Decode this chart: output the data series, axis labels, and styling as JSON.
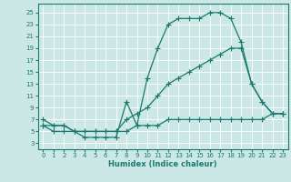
{
  "xlabel": "Humidex (Indice chaleur)",
  "bg_color": "#cce8e6",
  "grid_color": "#b0d4d2",
  "line_color": "#1a7a6e",
  "xlim": [
    -0.5,
    23.5
  ],
  "ylim": [
    2.0,
    26.5
  ],
  "xticks": [
    0,
    1,
    2,
    3,
    4,
    5,
    6,
    7,
    8,
    9,
    10,
    11,
    12,
    13,
    14,
    15,
    16,
    17,
    18,
    19,
    20,
    21,
    22,
    23
  ],
  "yticks": [
    3,
    5,
    7,
    9,
    11,
    13,
    15,
    17,
    19,
    21,
    23,
    25
  ],
  "line1_x": [
    0,
    1,
    2,
    3,
    4,
    5,
    6,
    7,
    8,
    9,
    10,
    11,
    12,
    13,
    14,
    15,
    16,
    17,
    18,
    19,
    20,
    21,
    22,
    23
  ],
  "line1_y": [
    7,
    6,
    6,
    5,
    4,
    4,
    4,
    4,
    10,
    6,
    14,
    19,
    23,
    24,
    24,
    24,
    25,
    25,
    24,
    20,
    13,
    10,
    8,
    8
  ],
  "line2_x": [
    0,
    1,
    2,
    3,
    4,
    5,
    6,
    7,
    8,
    9,
    10,
    11,
    12,
    13,
    14,
    15,
    16,
    17,
    18,
    19,
    20,
    21,
    22,
    23
  ],
  "line2_y": [
    6,
    6,
    6,
    5,
    5,
    5,
    5,
    5,
    7,
    8,
    9,
    11,
    13,
    14,
    15,
    16,
    17,
    18,
    19,
    19,
    13,
    10,
    8,
    8
  ],
  "line3_x": [
    0,
    1,
    2,
    3,
    4,
    5,
    6,
    7,
    8,
    9,
    10,
    11,
    12,
    13,
    14,
    15,
    16,
    17,
    18,
    19,
    20,
    21,
    22,
    23
  ],
  "line3_y": [
    6,
    5,
    5,
    5,
    5,
    5,
    5,
    5,
    5,
    6,
    6,
    6,
    7,
    7,
    7,
    7,
    7,
    7,
    7,
    7,
    7,
    7,
    8,
    8
  ]
}
